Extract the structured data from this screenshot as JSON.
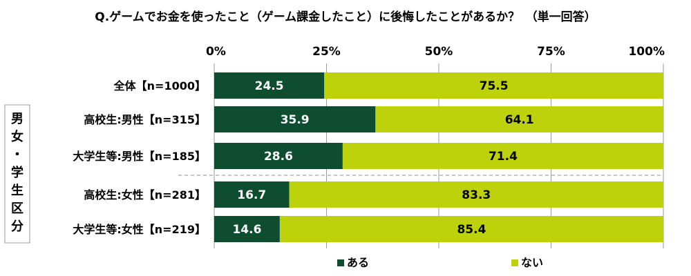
{
  "chart_data": {
    "type": "bar",
    "orientation": "horizontal",
    "stacked": true,
    "title": "Q.ゲームでお金を使ったこと（ゲーム課金したこと）に後悔したことがあるか？　（単一回答）",
    "xlim": [
      0,
      100
    ],
    "x_ticks": [
      "0%",
      "25%",
      "50%",
      "75%",
      "100%"
    ],
    "x_tick_values": [
      0,
      25,
      50,
      75,
      100
    ],
    "categories": [
      "全体【n=1000】",
      "高校生:男性【n=315】",
      "大学生等:男性【n=185】",
      "高校生:女性【n=281】",
      "大学生等:女性【n=219】"
    ],
    "series": [
      {
        "name": "ある",
        "color": "#0f4d31",
        "label_color": "#ffffff",
        "values": [
          24.5,
          35.9,
          28.6,
          16.7,
          14.6
        ]
      },
      {
        "name": "ない",
        "color": "#bdd20a",
        "label_color": "#000000",
        "values": [
          75.5,
          64.1,
          71.4,
          83.3,
          85.4
        ]
      }
    ],
    "group_label": "男女・学生区分",
    "group_rows": [
      1,
      2,
      3,
      4
    ],
    "legend_position": "bottom",
    "grid": true
  }
}
